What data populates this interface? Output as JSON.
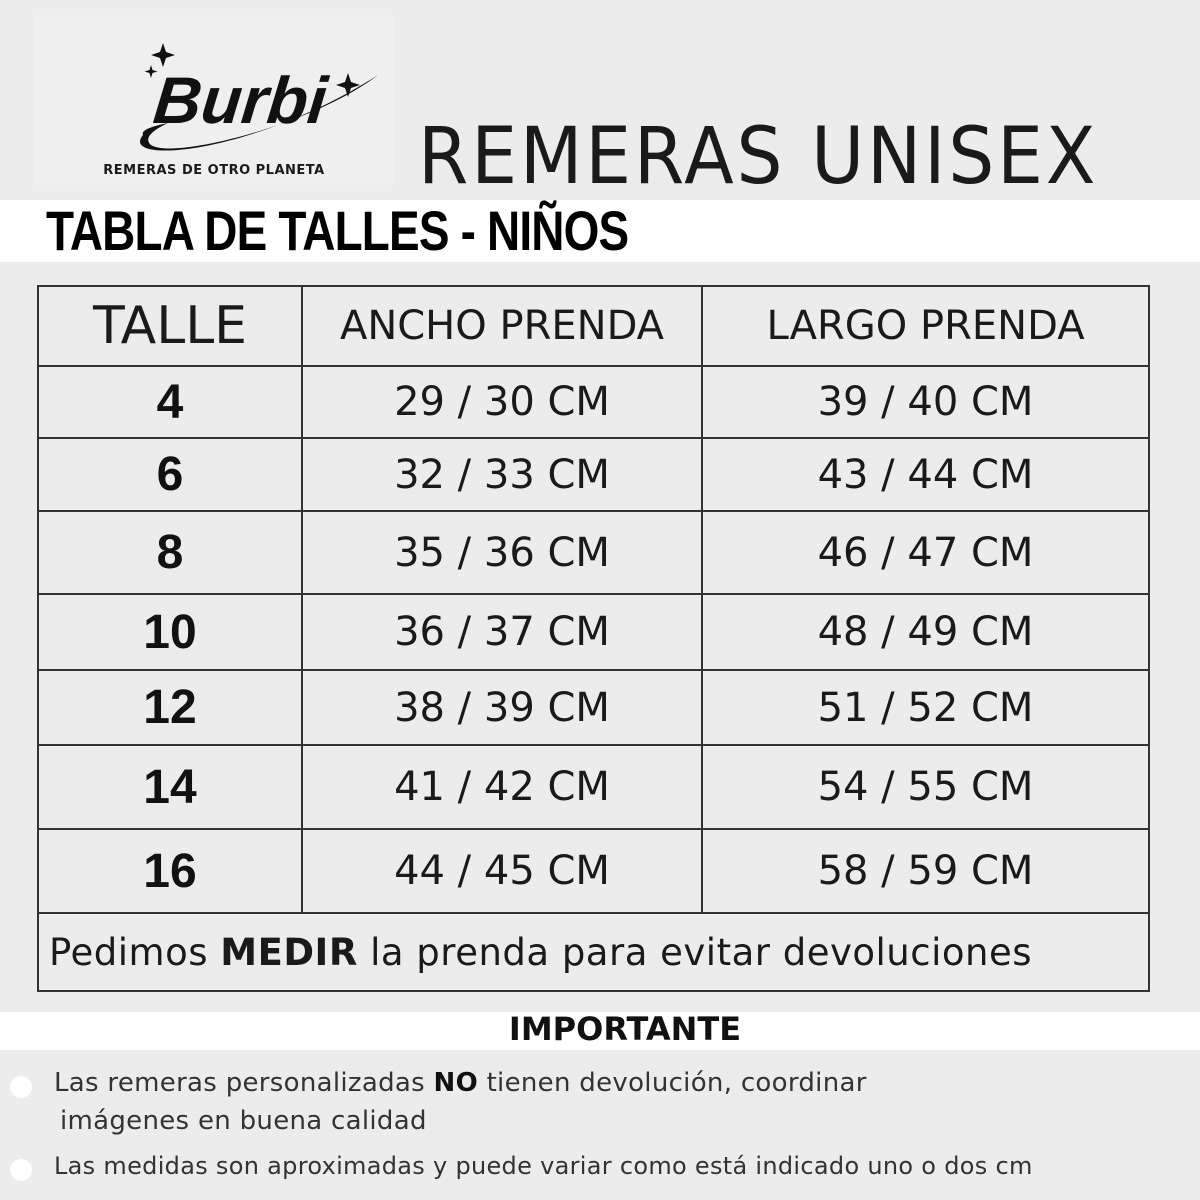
{
  "brand": {
    "logo_text": "Burbi",
    "tagline": "REMERAS DE OTRO PLANETA"
  },
  "title": "REMERAS UNISEX",
  "subtitle": "TABLA DE TALLES - NIÑOS",
  "table": {
    "headers": [
      "TALLE",
      "ANCHO PRENDA",
      "LARGO PRENDA"
    ],
    "rows": [
      {
        "talle": "4",
        "ancho": "29 / 30 CM",
        "largo": "39 / 40 CM"
      },
      {
        "talle": "6",
        "ancho": "32 / 33 CM",
        "largo": "43 / 44 CM"
      },
      {
        "talle": "8",
        "ancho": "35 / 36 CM",
        "largo": "46 / 47 CM"
      },
      {
        "talle": "10",
        "ancho": "36 / 37 CM",
        "largo": "48 / 49 CM"
      },
      {
        "talle": "12",
        "ancho": "38 / 39 CM",
        "largo": "51 / 52 CM"
      },
      {
        "talle": "14",
        "ancho": "41 / 42 CM",
        "largo": "54 / 55 CM"
      },
      {
        "talle": "16",
        "ancho": "44 / 45 CM",
        "largo": "58 / 59 CM"
      }
    ],
    "note": {
      "pre": "Pedimos ",
      "bold": "MEDIR",
      "post": " la prenda para evitar devoluciones"
    }
  },
  "important": {
    "heading": "IMPORTANTE",
    "items": [
      {
        "pre": "Las remeras personalizadas ",
        "bold": "NO",
        "post": " tienen devolución, coordinar",
        "line2": "imágenes en buena calidad"
      },
      {
        "text": "Las medidas son aproximadas y puede variar como está indicado uno o dos cm"
      }
    ]
  }
}
